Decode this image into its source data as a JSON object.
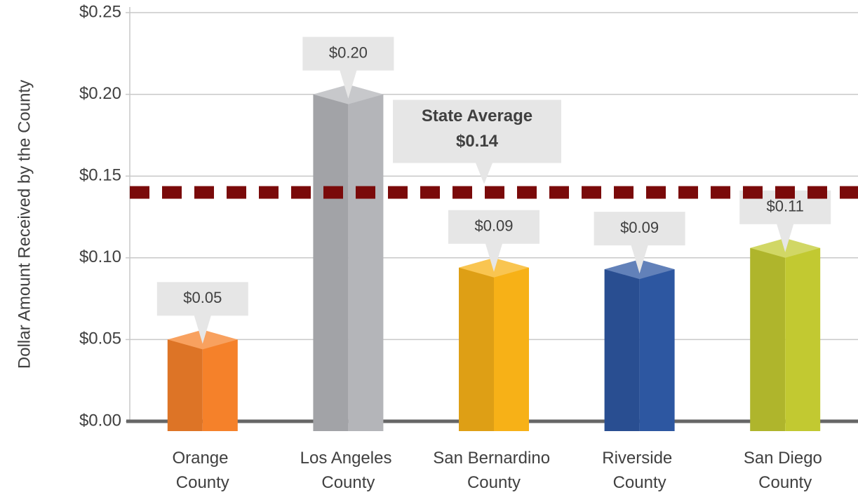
{
  "chart_data": {
    "type": "bar",
    "y_axis_label": "Dollar Amount Received by the County",
    "categories": [
      "Orange County",
      "Los Angeles County",
      "San Bernardino County",
      "Riverside County",
      "San Diego County"
    ],
    "values": [
      0.05,
      0.2,
      0.094,
      0.093,
      0.106
    ],
    "value_labels": [
      "$0.05",
      "$0.20",
      "$0.09",
      "$0.09",
      "$0.11"
    ],
    "colors": [
      "#f5812a",
      "#b4b5b9",
      "#f7b117",
      "#2d57a1",
      "#c2c931"
    ],
    "ylim": [
      0,
      0.25
    ],
    "yticks": [
      {
        "value": 0,
        "label": "$0.00"
      },
      {
        "value": 0.05,
        "label": "$0.05"
      },
      {
        "value": 0.1,
        "label": "$0.10"
      },
      {
        "value": 0.15,
        "label": "$0.15"
      },
      {
        "value": 0.2,
        "label": "$0.20"
      },
      {
        "value": 0.25,
        "label": "$0.25"
      }
    ],
    "grid": true,
    "reference_line": {
      "label": "State Average",
      "value": 0.14,
      "value_label": "$0.14",
      "color": "#7a0a0a"
    }
  }
}
